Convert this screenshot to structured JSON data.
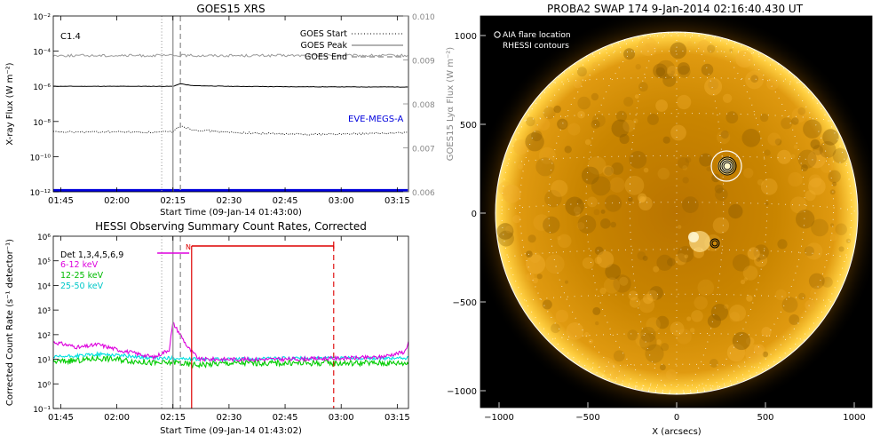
{
  "goes": {
    "title": "GOES15 XRS",
    "xlabel": "Start Time (09-Jan-14 01:43:00)",
    "ylabel_left": "X-ray Flux (W m⁻²)",
    "ylabel_right": "GOES15 Lyα Flux (W m⁻²)",
    "class_label": "C1.4",
    "eve_label": "EVE-MEGS-A",
    "legend": [
      {
        "label": "GOES Start",
        "style": "dotted"
      },
      {
        "label": "GOES Peak",
        "style": "solid"
      },
      {
        "label": "GOES End",
        "style": "dashed"
      }
    ],
    "x_ticks": [
      "01:45",
      "02:00",
      "02:15",
      "02:30",
      "02:45",
      "03:00",
      "03:15"
    ],
    "y_ticks_left": [
      "10⁻²",
      "10⁻⁴",
      "10⁻⁶",
      "10⁻⁸",
      "10⁻¹⁰",
      "10⁻¹²"
    ],
    "y_ticks_right": [
      "0.010",
      "0.009",
      "0.008",
      "0.007",
      "0.006"
    ]
  },
  "hessi": {
    "title": "HESSI Observing Summary Count Rates, Corrected",
    "xlabel": "Start Time (09-Jan-14 01:43:02)",
    "ylabel": "Corrected Count Rate (s⁻¹ detector⁻¹)",
    "legend_title": "Det 1,3,4,5,6,9",
    "n_label": "N",
    "x_ticks": [
      "01:45",
      "02:00",
      "02:15",
      "02:30",
      "02:45",
      "03:00",
      "03:15"
    ],
    "y_ticks": [
      "10⁶",
      "10⁵",
      "10⁴",
      "10³",
      "10²",
      "10¹",
      "10⁰",
      "10⁻¹"
    ]
  },
  "swap": {
    "title": "PROBA2 SWAP 174  9-Jan-2014 02:16:40.430 UT",
    "xlabel": "X (arcsecs)",
    "legend": [
      "AIA flare location",
      "RHESSI contours"
    ],
    "x_ticks": [
      "−1000",
      "−500",
      "0",
      "500",
      "1000"
    ],
    "y_ticks": [
      "1000",
      "500",
      "0",
      "−500",
      "−1000"
    ]
  },
  "colors": {
    "goes_long": "#000000",
    "goes_short": "#000000",
    "lya": "#999999",
    "eve": "#0000dd",
    "hessi_6_12": "#dd00dd",
    "hessi_12_25": "#00cc00",
    "hessi_25_50": "#00e0e0",
    "night": "#dd0000"
  },
  "chart_data": [
    {
      "type": "line",
      "title": "GOES15 XRS",
      "xlabel": "Start Time (09-Jan-14 01:43:00)",
      "ylabel": "X-ray Flux (W m⁻²)",
      "y_scale": "log",
      "xlim": [
        "01:43",
        "03:18"
      ],
      "ylim": [
        1e-12,
        0.01
      ],
      "y2lim": [
        0.006,
        0.01
      ],
      "x": [
        "01:43",
        "01:50",
        "02:00",
        "02:10",
        "02:15",
        "02:17",
        "02:20",
        "02:30",
        "02:45",
        "03:00",
        "03:10",
        "03:18"
      ],
      "series": [
        {
          "name": "",
          "axis": "left",
          "values": [
            1e-06,
            1e-06,
            1e-06,
            1e-06,
            1e-06,
            1.4e-06,
            1.1e-06,
            1e-06,
            9.5e-07,
            9.3e-07,
            9.2e-07,
            9.2e-07
          ]
        },
        {
          "name": "",
          "axis": "left",
          "values": [
            2.5e-09,
            2.5e-09,
            2.6e-09,
            2.4e-09,
            2.6e-09,
            6e-09,
            3.5e-09,
            2.4e-09,
            1.9e-09,
            1.9e-09,
            2.1e-09,
            2.3e-09
          ]
        },
        {
          "name": "",
          "axis": "right",
          "values": [
            0.0091,
            0.0091,
            0.0091,
            0.0091,
            0.0091,
            0.0091,
            0.0091,
            0.0091,
            0.0091,
            0.0091,
            0.0091,
            0.0091
          ]
        },
        {
          "name": "EVE-MEGS-A",
          "axis": "left",
          "values": [
            1.2e-12,
            1.2e-12,
            1.2e-12,
            1.2e-12,
            1.2e-12,
            1.2e-12,
            1.2e-12,
            1.2e-12,
            1.2e-12,
            1.2e-12,
            1.2e-12,
            1.2e-12
          ]
        }
      ],
      "markers": [
        {
          "name": "GOES Start",
          "x": "02:12"
        },
        {
          "name": "GOES Peak",
          "x": "02:15"
        },
        {
          "name": "GOES End",
          "x": "02:17"
        }
      ]
    },
    {
      "type": "line",
      "title": "HESSI Observing Summary Count Rates, Corrected",
      "xlabel": "Start Time (09-Jan-14 01:43:02)",
      "ylabel": "Corrected Count Rate (s⁻¹ detector⁻¹)",
      "y_scale": "log",
      "xlim": [
        "01:43",
        "03:18"
      ],
      "ylim": [
        0.1,
        1000000.0
      ],
      "x": [
        "01:43",
        "01:50",
        "01:55",
        "02:00",
        "02:10",
        "02:14",
        "02:15",
        "02:17",
        "02:19",
        "02:22",
        "02:30",
        "02:45",
        "03:00",
        "03:10",
        "03:17",
        "03:18"
      ],
      "series": [
        {
          "name": "6-12 keV",
          "values": [
            50,
            30,
            40,
            25,
            12,
            25,
            300,
            100,
            30,
            10,
            10,
            10,
            11,
            12,
            20,
            50
          ]
        },
        {
          "name": "12-25 keV",
          "values": [
            8,
            9,
            11,
            10,
            7,
            7,
            8,
            7,
            6,
            6,
            7,
            7,
            7,
            7,
            7,
            7
          ]
        },
        {
          "name": "25-50 keV",
          "values": [
            12,
            14,
            16,
            15,
            11,
            11,
            11,
            11,
            10,
            10,
            10,
            11,
            11,
            11,
            11,
            11
          ]
        }
      ],
      "markers": [
        {
          "name": "GOES Start",
          "x": "02:12"
        },
        {
          "name": "GOES Peak",
          "x": "02:15"
        },
        {
          "name": "GOES End",
          "x": "02:17"
        }
      ],
      "night": {
        "label": "N",
        "start": "02:20",
        "end": "02:58"
      },
      "legend_title": "Det 1,3,4,5,6,9"
    }
  ]
}
